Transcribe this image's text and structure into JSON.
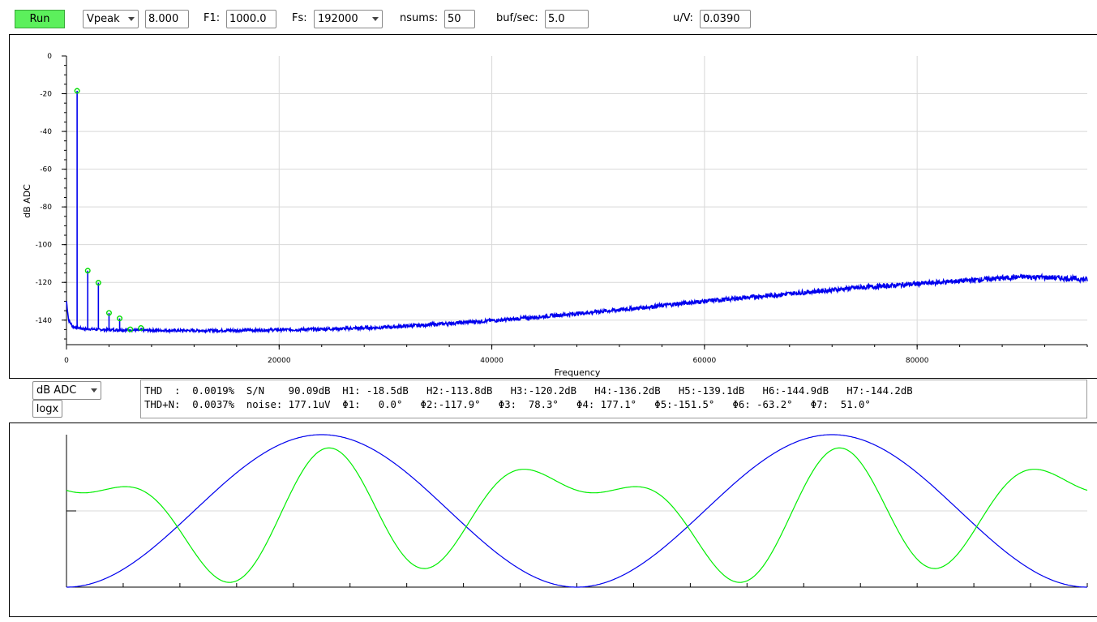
{
  "toolbar": {
    "run_label": "Run",
    "mode_select": "Vpeak",
    "mode_value": "8.000",
    "f1_label": "F1:",
    "f1_value": "1000.0",
    "fs_label": "Fs:",
    "fs_select": "192000",
    "nsums_label": "nsums:",
    "nsums_value": "50",
    "bufsec_label": "buf/sec:",
    "bufsec_value": "5.0",
    "uv_label": "u/V:",
    "uv_value": "0.0390"
  },
  "spectrum": {
    "ylabel": "dB ADC",
    "xlabel": "Frequency"
  },
  "controls": {
    "scale_select": "dB ADC",
    "logx_label": "logx"
  },
  "stats": {
    "line1": "THD  :  0.0019%  S/N    90.09dB  H1: -18.5dB   H2:-113.8dB   H3:-120.2dB   H4:-136.2dB   H5:-139.1dB   H6:-144.9dB   H7:-144.2dB",
    "line2": "THD+N:  0.0037%  noise: 177.1uV  Φ1:   0.0°   Φ2:-117.9°   Φ3:  78.3°   Φ4: 177.1°   Φ5:-151.5°   Φ6: -63.2°   Φ7:  51.0°"
  },
  "chart_data": [
    {
      "type": "line",
      "xlabel": "Frequency",
      "ylabel": "dB ADC",
      "xlim": [
        0,
        96000
      ],
      "ylim": [
        -153,
        0
      ],
      "x_ticks": [
        0,
        20000,
        40000,
        60000,
        80000
      ],
      "y_ticks": [
        0,
        -20,
        -40,
        -60,
        -80,
        -100,
        -120,
        -140
      ],
      "grid": true,
      "series": [
        {
          "color": "#0000ee",
          "x": [
            0,
            200,
            600,
            1500,
            3000,
            6000,
            10000,
            14000,
            18000,
            22000,
            26000,
            30000,
            34000,
            38000,
            42000,
            46000,
            50000,
            54000,
            58000,
            62000,
            66000,
            70000,
            74000,
            78000,
            82000,
            86000,
            90000,
            93000,
            96000
          ],
          "y": [
            -130,
            -140,
            -143.5,
            -144.5,
            -145,
            -145.3,
            -145.5,
            -145.5,
            -145.3,
            -145,
            -144.5,
            -143.8,
            -142.5,
            -141,
            -139.5,
            -137.5,
            -135.5,
            -133.5,
            -131,
            -129,
            -127,
            -125,
            -123,
            -121.5,
            -120,
            -118.5,
            -117,
            -117.5,
            -118.5
          ]
        }
      ],
      "harmonics": [
        {
          "name": "H1",
          "freq": 1000,
          "db": -18.5
        },
        {
          "name": "H2",
          "freq": 2000,
          "db": -113.8
        },
        {
          "name": "H3",
          "freq": 3000,
          "db": -120.2
        },
        {
          "name": "H4",
          "freq": 4000,
          "db": -136.2
        },
        {
          "name": "H5",
          "freq": 5000,
          "db": -139.1
        },
        {
          "name": "H6",
          "freq": 6000,
          "db": -144.9
        },
        {
          "name": "H7",
          "freq": 7000,
          "db": -144.2
        }
      ],
      "marker_color": "#00dd00"
    },
    {
      "type": "line",
      "grid": true,
      "series": [
        {
          "color": "#0000ee",
          "cycles": 2,
          "phase_deg": 0
        },
        {
          "color": "#00ee00",
          "cycles": 2,
          "phase_deg": 0
        }
      ]
    }
  ]
}
